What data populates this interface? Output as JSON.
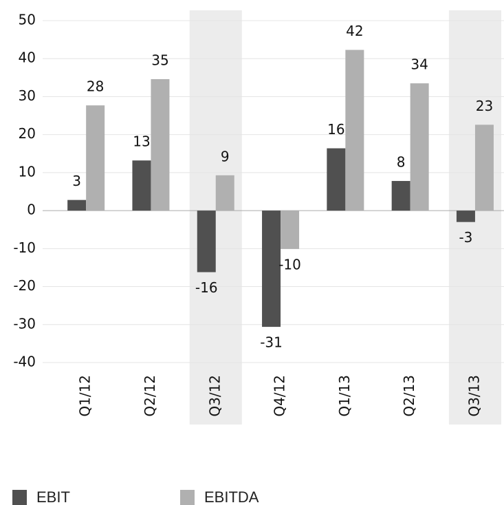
{
  "chart_data": {
    "type": "bar",
    "categories": [
      "Q1/12",
      "Q2/12",
      "Q3/12",
      "Q4/12",
      "Q1/13",
      "Q2/13",
      "Q3/13"
    ],
    "series": [
      {
        "name": "EBIT",
        "color": "#505050",
        "values": [
          2.8,
          13.2,
          -16.2,
          -30.6,
          16.4,
          7.8,
          -3.0
        ],
        "value_labels": [
          "3",
          "13",
          "-16",
          "-31",
          "16",
          "8",
          "-3"
        ]
      },
      {
        "name": "EBITDA",
        "color": "#b0b0b0",
        "values": [
          27.7,
          34.6,
          9.3,
          -10.1,
          42.3,
          33.5,
          22.6
        ],
        "value_labels": [
          "28",
          "35",
          "9",
          "-10",
          "42",
          "34",
          "23"
        ]
      }
    ],
    "ylim": [
      -40,
      50
    ],
    "yticks": [
      -40,
      -30,
      -20,
      -10,
      0,
      10,
      20,
      30,
      40,
      50
    ],
    "grid": true,
    "highlight_indices": [
      2,
      6
    ],
    "highlight_color": "#ececec",
    "legend": "bottom"
  }
}
